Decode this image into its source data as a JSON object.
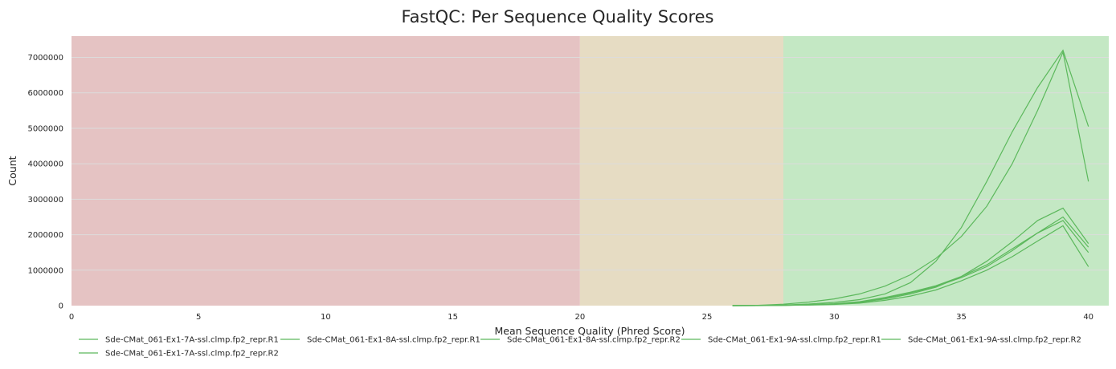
{
  "chart_data": {
    "type": "line",
    "title": "FastQC: Per Sequence Quality Scores",
    "xlabel": "Mean Sequence Quality (Phred Score)",
    "ylabel": "Count",
    "xlim": [
      0,
      40.8
    ],
    "ylim": [
      0,
      7600000
    ],
    "xticks": [
      0,
      5,
      10,
      15,
      20,
      25,
      30,
      35,
      40
    ],
    "yticks": [
      0,
      1000000,
      2000000,
      3000000,
      4000000,
      5000000,
      6000000,
      7000000
    ],
    "grid": true,
    "legend_position": "bottom",
    "bands": [
      {
        "from": 0,
        "to": 20,
        "color": "#e5c3c3"
      },
      {
        "from": 20,
        "to": 28,
        "color": "#e6dcc3"
      },
      {
        "from": 28,
        "to": 40.8,
        "color": "#c4e8c4"
      }
    ],
    "series_color": "#5cb85c",
    "x": [
      26,
      27,
      28,
      29,
      30,
      31,
      32,
      33,
      34,
      35,
      36,
      37,
      38,
      39,
      40
    ],
    "series": [
      {
        "name": "Sde-CMat_061-Ex1-7A-ssl.clmp.fp2_repr.R1",
        "values": [
          0,
          2000,
          10000,
          25000,
          55000,
          110000,
          230000,
          380000,
          560000,
          820000,
          1150000,
          1600000,
          2050000,
          2400000,
          1500000
        ]
      },
      {
        "name": "Sde-CMat_061-Ex1-8A-ssl.clmp.fp2_repr.R1",
        "values": [
          0,
          3000,
          18000,
          45000,
          90000,
          170000,
          330000,
          650000,
          1250000,
          2200000,
          3500000,
          4900000,
          6150000,
          7200000,
          5050000
        ]
      },
      {
        "name": "Sde-CMat_061-Ex1-8A-ssl.clmp.fp2_repr.R2",
        "values": [
          0,
          8000,
          40000,
          100000,
          190000,
          330000,
          550000,
          870000,
          1330000,
          1950000,
          2800000,
          4000000,
          5500000,
          7150000,
          3500000
        ]
      },
      {
        "name": "Sde-CMat_061-Ex1-9A-ssl.clmp.fp2_repr.R1",
        "values": [
          0,
          1500,
          8000,
          20000,
          45000,
          90000,
          190000,
          330000,
          520000,
          820000,
          1250000,
          1800000,
          2400000,
          2750000,
          1750000
        ]
      },
      {
        "name": "Sde-CMat_061-Ex1-9A-ssl.clmp.fp2_repr.R2",
        "values": [
          0,
          1000,
          6000,
          15000,
          35000,
          70000,
          150000,
          270000,
          440000,
          700000,
          1000000,
          1380000,
          1820000,
          2250000,
          1100000
        ]
      },
      {
        "name": "Sde-CMat_061-Ex1-7A-ssl.clmp.fp2_repr.R2",
        "values": [
          0,
          1800,
          9000,
          22000,
          50000,
          100000,
          210000,
          360000,
          540000,
          790000,
          1100000,
          1550000,
          2050000,
          2500000,
          1650000
        ]
      }
    ]
  }
}
